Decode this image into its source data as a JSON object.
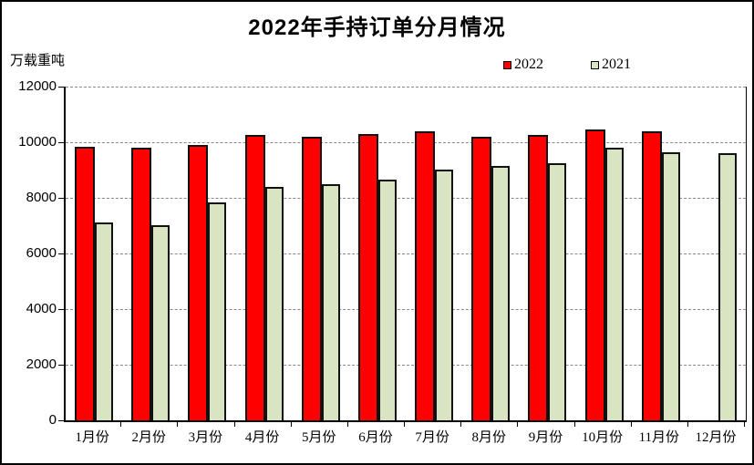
{
  "chart_data": {
    "type": "bar",
    "title": "2022年手持订单分月情况",
    "ylabel": "万载重吨",
    "xlabel": "",
    "categories": [
      "1月份",
      "2月份",
      "3月份",
      "4月份",
      "5月份",
      "6月份",
      "7月份",
      "8月份",
      "9月份",
      "10月份",
      "11月份",
      "12月份"
    ],
    "series": [
      {
        "name": "2022",
        "color": "#FF0000",
        "values": [
          9850,
          9800,
          9900,
          10250,
          10200,
          10300,
          10400,
          10200,
          10250,
          10450,
          10400,
          null
        ]
      },
      {
        "name": "2021",
        "color": "#D9E4C2",
        "values": [
          7100,
          7000,
          7850,
          8400,
          8500,
          8650,
          9000,
          9150,
          9250,
          9800,
          9650,
          9600
        ]
      }
    ],
    "ylim": [
      0,
      12000
    ],
    "yticks": [
      0,
      2000,
      4000,
      6000,
      8000,
      10000,
      12000
    ],
    "grid": "dashed-horizontal",
    "legend_position": "top-right",
    "axis_color": "#000000",
    "gridline_color": "#888888"
  }
}
